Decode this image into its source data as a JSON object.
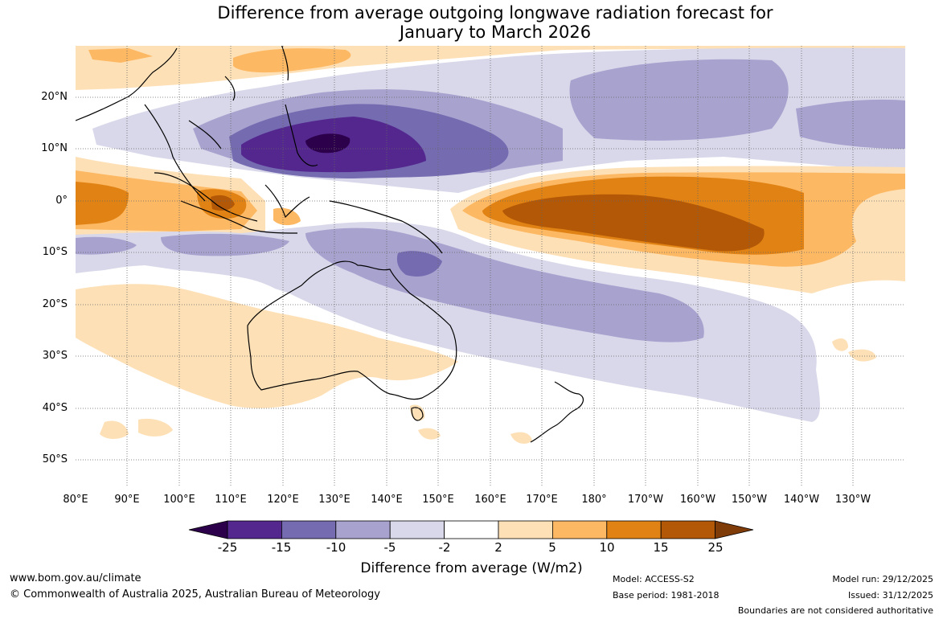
{
  "title": {
    "line1": "Difference from average outgoing longwave radiation forecast for",
    "line2": "January to March 2026"
  },
  "map": {
    "lat_labels": [
      "20°N",
      "10°N",
      "0°",
      "10°S",
      "20°S",
      "30°S",
      "40°S",
      "50°S"
    ],
    "lon_labels": [
      "80°E",
      "90°E",
      "100°E",
      "110°E",
      "120°E",
      "130°E",
      "140°E",
      "150°E",
      "160°E",
      "170°E",
      "180°",
      "170°W",
      "160°W",
      "150°W",
      "140°W",
      "130°W"
    ]
  },
  "colorbar": {
    "ticks": [
      "-25",
      "-15",
      "-10",
      "-5",
      "-2",
      "2",
      "5",
      "10",
      "15",
      "25"
    ],
    "colors": [
      "#54278f",
      "#756bb1",
      "#a8a2cf",
      "#d8d8ea",
      "#ffffff",
      "#fee0b6",
      "#fdb863",
      "#e08214",
      "#b35806"
    ],
    "under_color": "#2d004b",
    "over_color": "#7f3b08",
    "label": "Difference from average (W/m2)"
  },
  "footer": {
    "url": "www.bom.gov.au/climate",
    "copyright": "© Commonwealth of Australia 2025, Australian Bureau of Meteorology",
    "model": "Model: ACCESS-S2",
    "base_period": "Base period: 1981-2018",
    "model_run": "Model run: 29/12/2025",
    "issued": "Issued: 31/12/2025",
    "disclaimer": "Boundaries are not considered authoritative"
  }
}
